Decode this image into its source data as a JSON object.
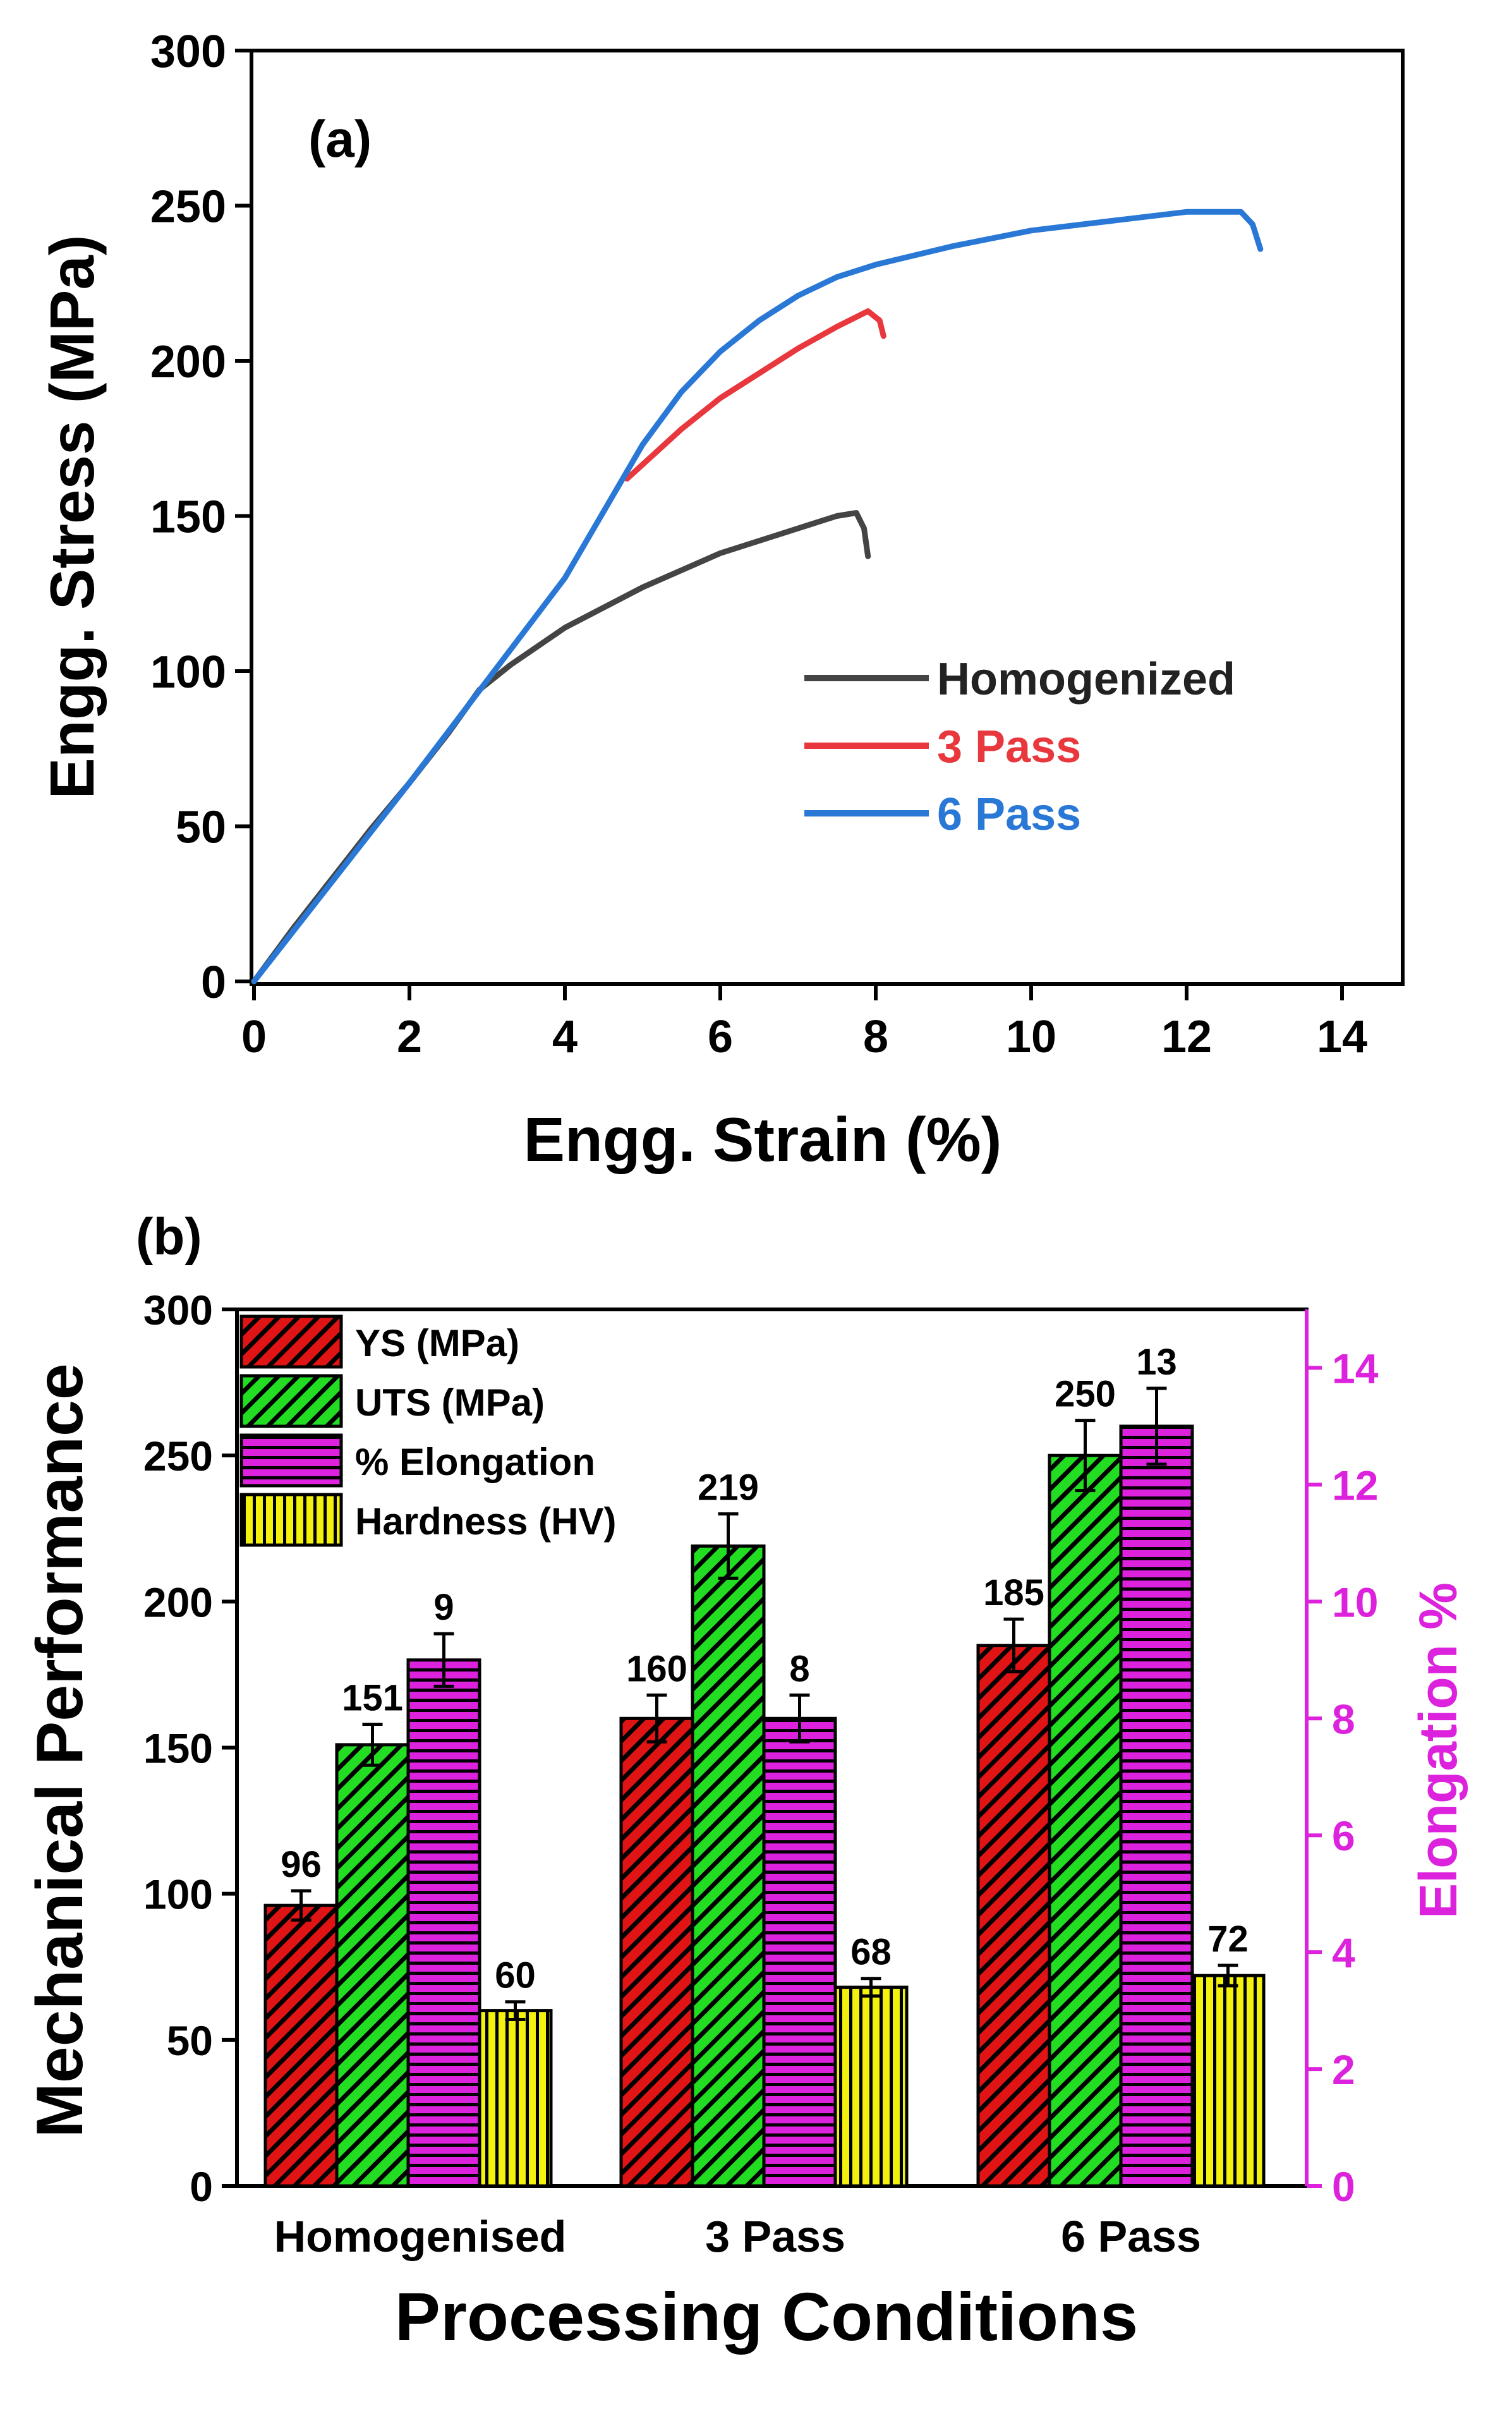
{
  "colors": {
    "homogenized": "#444444",
    "pass3": "#e8383d",
    "pass6": "#2a78d6",
    "ys": "#e01414",
    "uts": "#22dd22",
    "elong": "#dd22dd",
    "hard": "#f2f20e",
    "right_axis": "#dd22dd",
    "axis": "#000000"
  },
  "chart_data": [
    {
      "type": "line",
      "panel_label": "(a)",
      "xlabel": "Engg. Strain (%)",
      "ylabel": "Engg. Stress (MPa)",
      "xlim": [
        0,
        15
      ],
      "ylim": [
        0,
        300
      ],
      "xticks": [
        0,
        2,
        4,
        6,
        8,
        10,
        12,
        14
      ],
      "yticks": [
        0,
        50,
        100,
        150,
        200,
        250,
        300
      ],
      "legend_position": "bottom-right",
      "series": [
        {
          "name": "Homogenized",
          "color_key": "homogenized",
          "x": [
            0,
            0.5,
            1,
            1.5,
            2,
            2.5,
            2.9,
            3.3,
            4,
            5,
            6,
            7,
            7.5,
            7.75,
            7.85,
            7.9
          ],
          "y": [
            0,
            17,
            33,
            49,
            64,
            80,
            94,
            102,
            114,
            127,
            138,
            146,
            150,
            151,
            146,
            137
          ]
        },
        {
          "name": "3 Pass",
          "color_key": "pass3",
          "x": [
            4.8,
            5.5,
            6,
            7,
            7.5,
            7.9,
            8.05,
            8.1
          ],
          "y": [
            162,
            178,
            188,
            204,
            211,
            216,
            213,
            208
          ]
        },
        {
          "name": "6 Pass",
          "color_key": "pass6",
          "x": [
            0,
            1,
            2,
            3,
            4,
            5,
            5.5,
            6,
            6.5,
            7,
            7.5,
            8,
            9,
            10,
            11,
            12,
            12.7,
            12.85,
            12.95
          ],
          "y": [
            0,
            32,
            64,
            97,
            130,
            173,
            190,
            203,
            213,
            221,
            227,
            231,
            237,
            242,
            245,
            248,
            248,
            244,
            236
          ]
        }
      ]
    },
    {
      "type": "bar",
      "panel_label": "(b)",
      "xlabel": "Processing Conditions",
      "ylabel": "Mechanical Performance",
      "y2label": "Elongation %",
      "categories": [
        "Homogenised",
        "3 Pass",
        "6 Pass"
      ],
      "ylim": [
        0,
        300
      ],
      "y2lim": [
        0,
        15
      ],
      "yticks": [
        0,
        50,
        100,
        150,
        200,
        250,
        300
      ],
      "y2ticks": [
        0,
        2,
        4,
        6,
        8,
        10,
        12,
        14
      ],
      "legend_position": "top-left",
      "series": [
        {
          "name": "YS (MPa)",
          "color_key": "ys",
          "pattern": "diagonal",
          "axis": "left",
          "values": [
            96,
            160,
            185
          ],
          "labels": [
            "96",
            "160",
            "185"
          ],
          "errors": [
            5,
            8,
            9
          ]
        },
        {
          "name": "UTS (MPa)",
          "color_key": "uts",
          "pattern": "diagonal",
          "axis": "left",
          "values": [
            151,
            219,
            250
          ],
          "labels": [
            "151",
            "219",
            "250"
          ],
          "errors": [
            7,
            11,
            12
          ]
        },
        {
          "name": "% Elongation",
          "color_key": "elong",
          "pattern": "horizontal",
          "axis": "right",
          "values": [
            9,
            8,
            13
          ],
          "labels": [
            "9",
            "8",
            "13"
          ],
          "errors": [
            0.45,
            0.4,
            0.65
          ]
        },
        {
          "name": "Hardness (HV)",
          "color_key": "hard",
          "pattern": "vertical",
          "axis": "left",
          "values": [
            60,
            68,
            72
          ],
          "labels": [
            "60",
            "68",
            "72"
          ],
          "errors": [
            3,
            3,
            3.5
          ]
        }
      ]
    }
  ]
}
